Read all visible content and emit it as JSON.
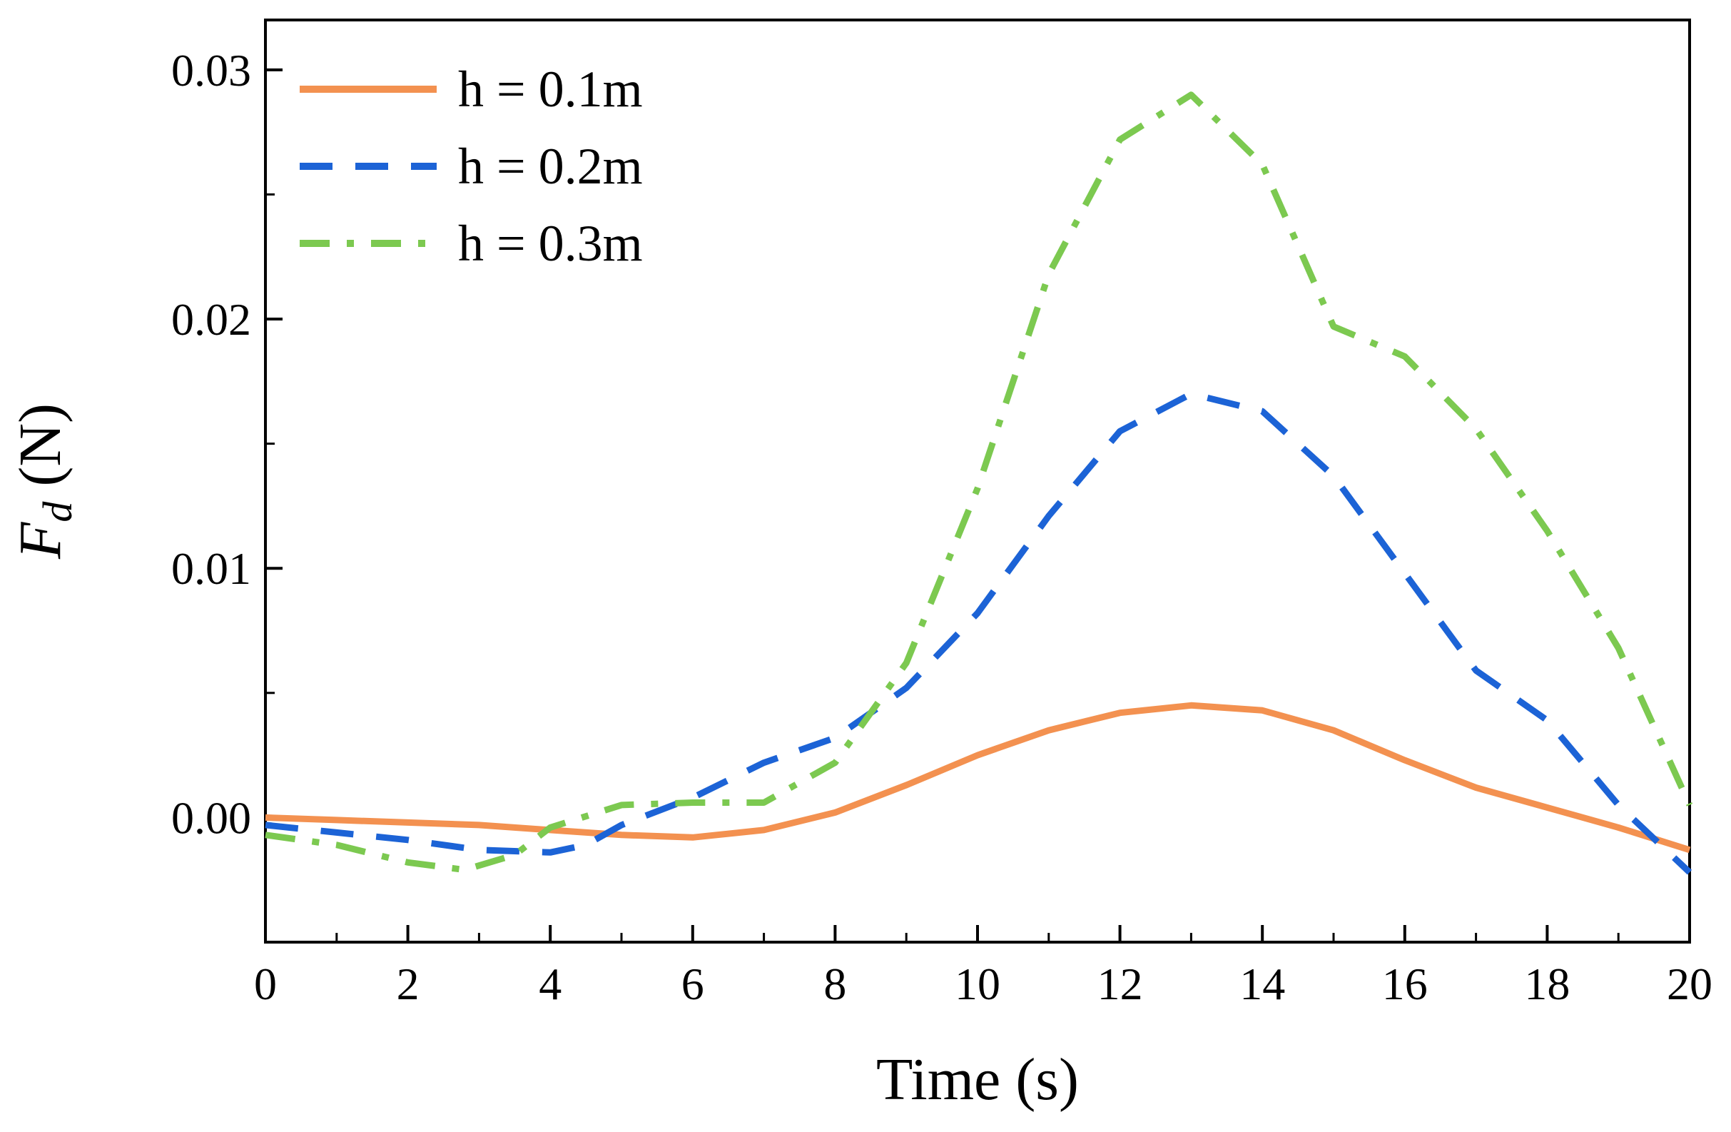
{
  "chart_data": {
    "type": "line",
    "xlabel": "Time (s)",
    "ylabel_main": "F",
    "ylabel_sub": "d",
    "ylabel_unit": " (N)",
    "xlim": [
      0,
      20
    ],
    "ylim": [
      -0.005,
      0.032
    ],
    "x_ticks": [
      0,
      2,
      4,
      6,
      8,
      10,
      12,
      14,
      16,
      18,
      20
    ],
    "x_tick_labels": [
      "0",
      "2",
      "4",
      "6",
      "8",
      "10",
      "12",
      "14",
      "16",
      "18",
      "20"
    ],
    "y_ticks": [
      0.0,
      0.01,
      0.02,
      0.03
    ],
    "y_tick_labels": [
      "0.00",
      "0.01",
      "0.02",
      "0.03"
    ],
    "grid": false,
    "legend_position": "top-left",
    "series": [
      {
        "name": "h = 0.1m",
        "color": "#F39150",
        "style": "solid",
        "points": [
          [
            0,
            0.0
          ],
          [
            1,
            -0.0001
          ],
          [
            2,
            -0.0002
          ],
          [
            3,
            -0.0003
          ],
          [
            4,
            -0.0005
          ],
          [
            5,
            -0.0007
          ],
          [
            6,
            -0.0008
          ],
          [
            7,
            -0.0005
          ],
          [
            8,
            0.0002
          ],
          [
            9,
            0.0013
          ],
          [
            10,
            0.0025
          ],
          [
            11,
            0.0035
          ],
          [
            12,
            0.0042
          ],
          [
            13,
            0.0045
          ],
          [
            14,
            0.0043
          ],
          [
            15,
            0.0035
          ],
          [
            16,
            0.0023
          ],
          [
            17,
            0.0012
          ],
          [
            18,
            0.0004
          ],
          [
            19,
            -0.0004
          ],
          [
            20,
            -0.0013
          ]
        ]
      },
      {
        "name": "h = 0.2m",
        "color": "#1C63D6",
        "style": "dashed",
        "points": [
          [
            0,
            -0.0003
          ],
          [
            1,
            -0.0006
          ],
          [
            2,
            -0.0009
          ],
          [
            3,
            -0.0013
          ],
          [
            4,
            -0.0014
          ],
          [
            4.5,
            -0.0011
          ],
          [
            5,
            -0.0003
          ],
          [
            6,
            0.0008
          ],
          [
            7,
            0.0022
          ],
          [
            8,
            0.0032
          ],
          [
            9,
            0.0052
          ],
          [
            10,
            0.0082
          ],
          [
            11,
            0.0121
          ],
          [
            12,
            0.0155
          ],
          [
            13,
            0.017
          ],
          [
            14,
            0.0163
          ],
          [
            15,
            0.0137
          ],
          [
            16,
            0.0098
          ],
          [
            17,
            0.0059
          ],
          [
            18,
            0.0039
          ],
          [
            19,
            0.0005
          ],
          [
            20,
            -0.0022
          ]
        ]
      },
      {
        "name": "h = 0.3m",
        "color": "#7CC950",
        "style": "dashdot",
        "points": [
          [
            0,
            -0.0007
          ],
          [
            1,
            -0.0011
          ],
          [
            2,
            -0.0018
          ],
          [
            2.8,
            -0.0021
          ],
          [
            3.5,
            -0.0015
          ],
          [
            4,
            -0.0004
          ],
          [
            5,
            0.0005
          ],
          [
            6,
            0.0006
          ],
          [
            7,
            0.0006
          ],
          [
            8,
            0.0022
          ],
          [
            9,
            0.0062
          ],
          [
            10,
            0.0132
          ],
          [
            11,
            0.0218
          ],
          [
            12,
            0.0272
          ],
          [
            13,
            0.029
          ],
          [
            14,
            0.0262
          ],
          [
            15,
            0.0197
          ],
          [
            16,
            0.0185
          ],
          [
            17,
            0.0156
          ],
          [
            18,
            0.0115
          ],
          [
            19,
            0.0068
          ],
          [
            20,
            0.0005
          ]
        ]
      }
    ]
  }
}
